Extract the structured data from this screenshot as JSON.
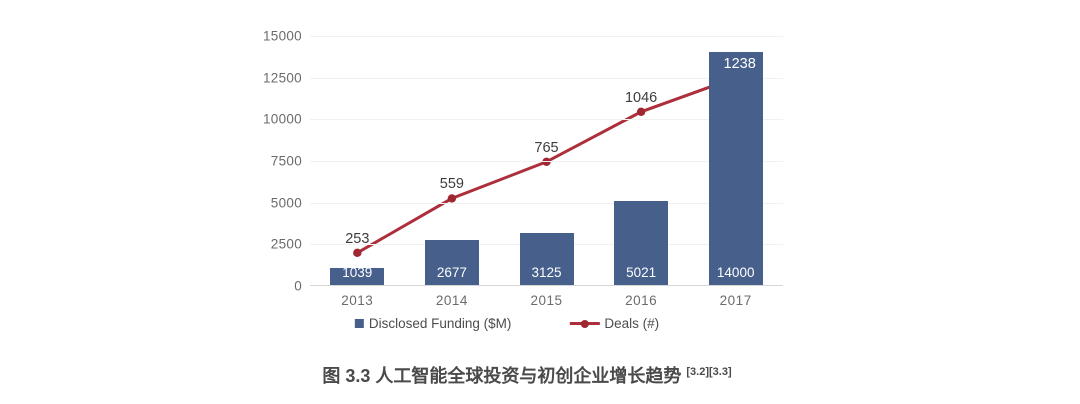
{
  "colors": {
    "bar": "#465f8b",
    "line": "#ad2f3b",
    "line_dot": "#a02631",
    "grid": "#f1f1f1",
    "axis": "#d6d6d6",
    "tick_text": "#6b6b6b",
    "point_label": "#3d3d3d",
    "bar_label": "#ffffff",
    "last_point_label": "#ffffff"
  },
  "chart_data": {
    "type": "bar",
    "subtype": "bar-and-line-combo",
    "categories": [
      "2013",
      "2014",
      "2015",
      "2016",
      "2017"
    ],
    "series": [
      {
        "name": "Disclosed Funding ($M)",
        "type": "bar",
        "axis": "primary",
        "values": [
          1039,
          2677,
          3125,
          5021,
          14000
        ]
      },
      {
        "name": "Deals (#)",
        "type": "line",
        "axis": "secondary-hidden",
        "values": [
          253,
          559,
          765,
          1046,
          1238
        ]
      }
    ],
    "title": "",
    "xlabel": "",
    "ylabel": "",
    "ylim": [
      0,
      15000
    ],
    "y_ticks": [
      0,
      2500,
      5000,
      7500,
      10000,
      12500,
      15000
    ],
    "grid": true,
    "legend_position": "bottom",
    "data_labels_visible": true
  },
  "caption": {
    "text": "图 3.3 人工智能全球投资与初创企业增长趋势",
    "refs": "[3.2][3.3]"
  }
}
